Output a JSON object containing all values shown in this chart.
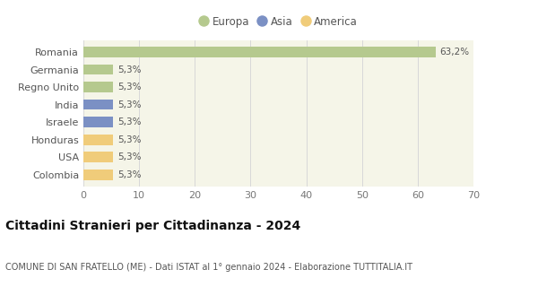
{
  "categories": [
    "Colombia",
    "USA",
    "Honduras",
    "Israele",
    "India",
    "Regno Unito",
    "Germania",
    "Romania"
  ],
  "values": [
    5.3,
    5.3,
    5.3,
    5.3,
    5.3,
    5.3,
    5.3,
    63.2
  ],
  "colors": [
    "#f0cc7a",
    "#f0cc7a",
    "#f0cc7a",
    "#7b90c4",
    "#7b90c4",
    "#b5c98e",
    "#b5c98e",
    "#b5c98e"
  ],
  "labels": [
    "5,3%",
    "5,3%",
    "5,3%",
    "5,3%",
    "5,3%",
    "5,3%",
    "5,3%",
    "63,2%"
  ],
  "xlim": [
    0,
    70
  ],
  "xticks": [
    0,
    10,
    20,
    30,
    40,
    50,
    60,
    70
  ],
  "title": "Cittadini Stranieri per Cittadinanza - 2024",
  "subtitle": "COMUNE DI SAN FRATELLO (ME) - Dati ISTAT al 1° gennaio 2024 - Elaborazione TUTTITALIA.IT",
  "legend_items": [
    {
      "label": "Europa",
      "color": "#b5c98e"
    },
    {
      "label": "Asia",
      "color": "#7b90c4"
    },
    {
      "label": "America",
      "color": "#f0cc7a"
    }
  ],
  "bg_color": "#ffffff",
  "plot_bg_color": "#f5f5e8",
  "grid_color": "#d8d8d8",
  "bar_height": 0.6,
  "label_fontsize": 7.5,
  "title_fontsize": 10,
  "subtitle_fontsize": 7,
  "ytick_fontsize": 8,
  "xtick_fontsize": 8,
  "legend_fontsize": 8.5
}
